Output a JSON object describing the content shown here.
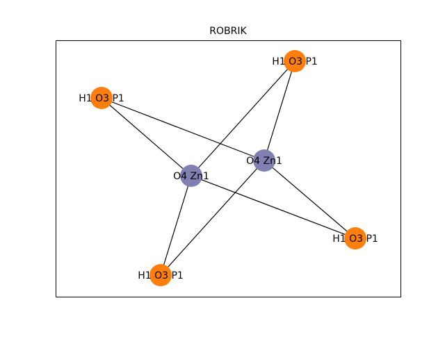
{
  "title": "ROBRIK",
  "colors": {
    "background": "#ffffff",
    "frame": "#000000",
    "edge": "#000000",
    "node_label": "#000000"
  },
  "node_types": {
    "linker": {
      "color": "#ff7f0e"
    },
    "metal": {
      "color": "#8080b3"
    }
  },
  "nodes": [
    {
      "id": "p_top_right",
      "label": "H1 O3 P1",
      "type": "linker"
    },
    {
      "id": "p_top_left",
      "label": "H1 O3 P1",
      "type": "linker"
    },
    {
      "id": "zn_right",
      "label": "O4 Zn1",
      "type": "metal"
    },
    {
      "id": "zn_left",
      "label": "O4 Zn1",
      "type": "metal"
    },
    {
      "id": "p_bottom_right",
      "label": "H1 O3 P1",
      "type": "linker"
    },
    {
      "id": "p_bottom_left",
      "label": "H1 O3 P1",
      "type": "linker"
    }
  ],
  "edges": [
    {
      "source": "p_top_left",
      "target": "zn_left"
    },
    {
      "source": "p_top_left",
      "target": "zn_right"
    },
    {
      "source": "p_top_right",
      "target": "zn_left"
    },
    {
      "source": "p_top_right",
      "target": "zn_right"
    },
    {
      "source": "zn_left",
      "target": "p_bottom_left"
    },
    {
      "source": "zn_left",
      "target": "p_bottom_right"
    },
    {
      "source": "zn_right",
      "target": "p_bottom_left"
    },
    {
      "source": "zn_right",
      "target": "p_bottom_right"
    }
  ]
}
